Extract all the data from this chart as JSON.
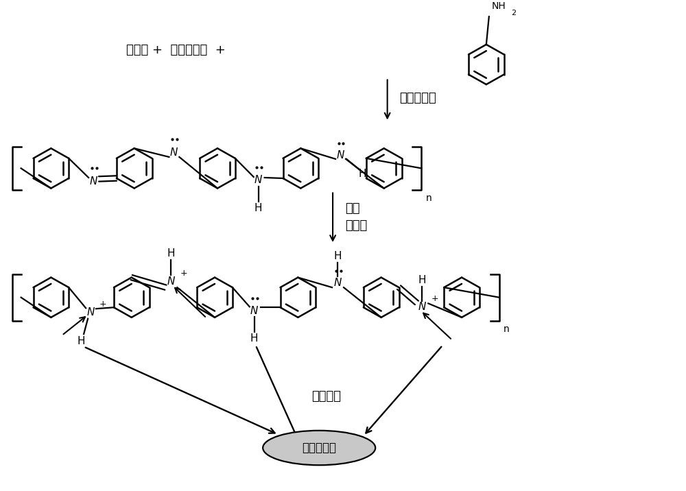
{
  "bg_color": "#ffffff",
  "reactants_text": "氢离子 +  杂多阴离子  +",
  "step1_label": "电化学聚合",
  "step2_label1": "掺杂",
  "step2_label2": "氢离子",
  "step3_label": "静电吸附",
  "product_label": "杂多阴离子",
  "figsize": [
    10.0,
    7.16
  ],
  "dpi": 100,
  "xlim": [
    0,
    10
  ],
  "ylim": [
    0,
    7.16
  ]
}
